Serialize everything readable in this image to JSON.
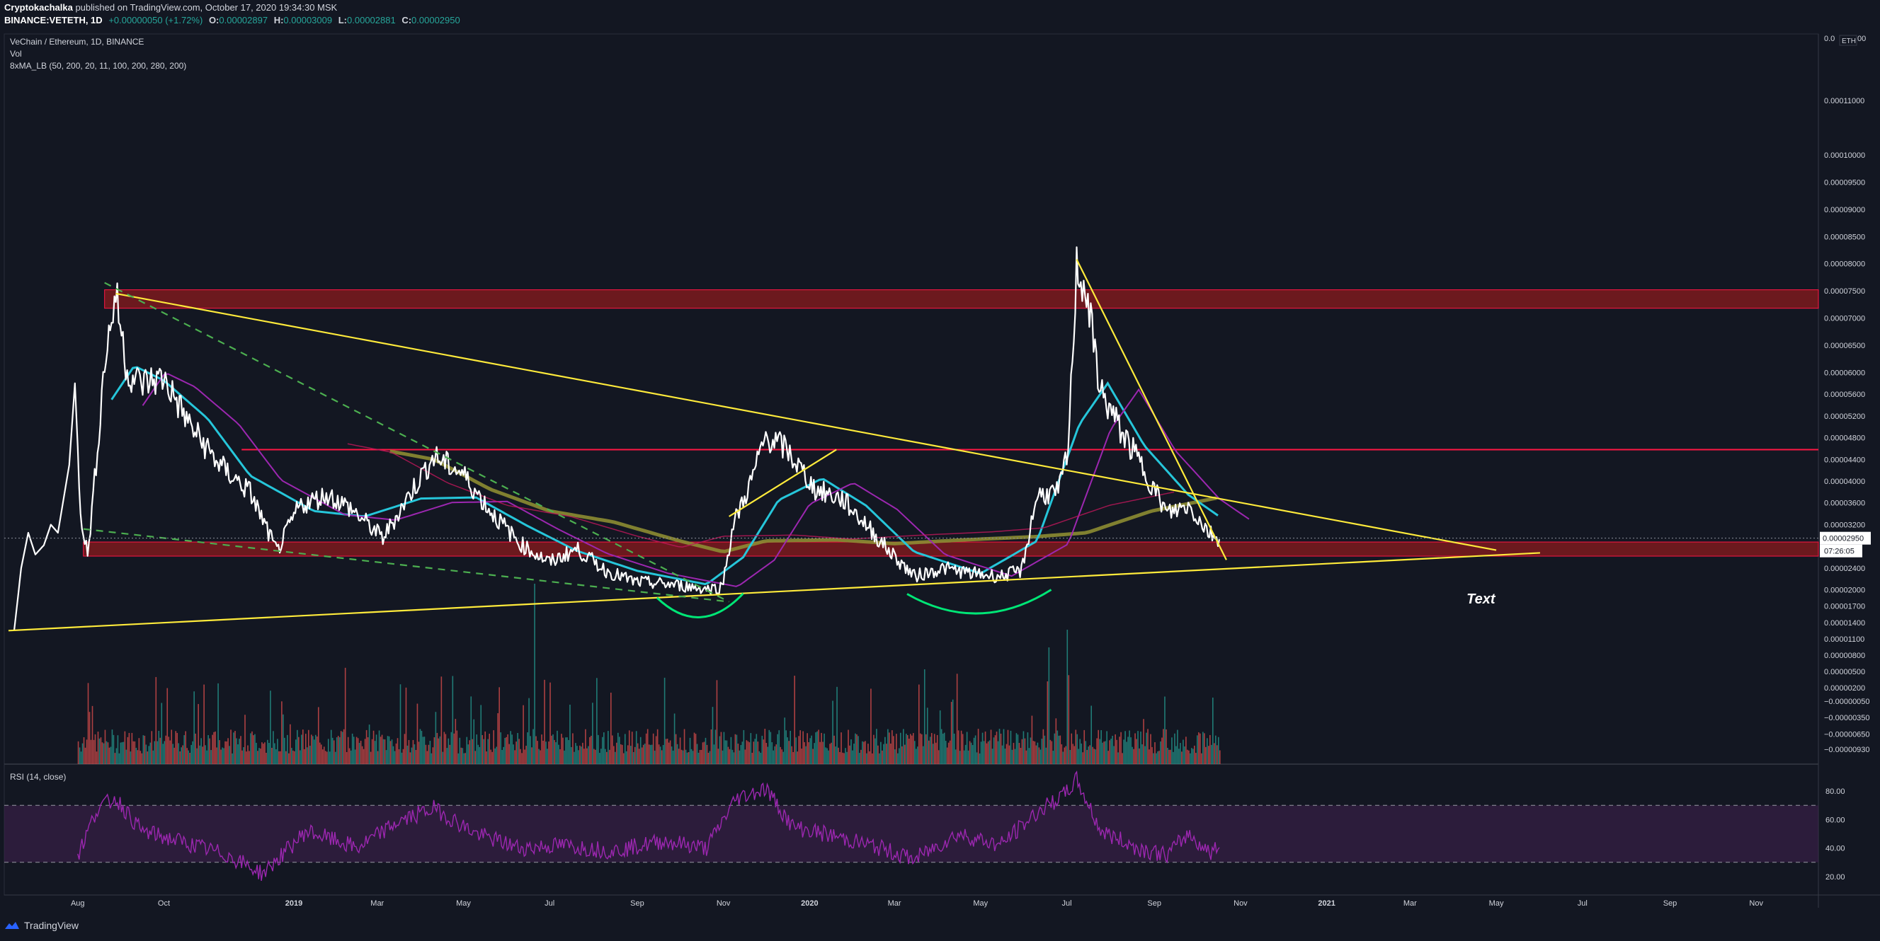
{
  "header": {
    "author": "Cryptokachalka",
    "published": "published on TradingView.com, October 17, 2020 19:34:30 MSK",
    "symbol_line": "BINANCE:VETETH, 1D",
    "change": "+0.00000050 (+1.72%)",
    "open_label": "O:",
    "open": "0.00002897",
    "high_label": "H:",
    "high": "0.00003009",
    "low_label": "L:",
    "low": "0.00002881",
    "close_label": "C:",
    "close": "0.00002950"
  },
  "legend": {
    "pair": "VeChain / Ethereum, 1D, BINANCE",
    "vol": "Vol",
    "ma": "8xMA_LB (50, 200, 20, 11, 100, 200, 280, 200)",
    "rsi": "RSI (14, close)"
  },
  "price_axis": {
    "currency": "ETH",
    "top_label": "0.0",
    "top_label_right": "00",
    "current_price": "0.00002950",
    "countdown": "07:26:05",
    "ticks": [
      {
        "label": "0.00011000",
        "v": 0.00011
      },
      {
        "label": "0.00010000",
        "v": 0.0001
      },
      {
        "label": "0.00009500",
        "v": 9.5e-05
      },
      {
        "label": "0.00009000",
        "v": 9e-05
      },
      {
        "label": "0.00008500",
        "v": 8.5e-05
      },
      {
        "label": "0.00008000",
        "v": 8e-05
      },
      {
        "label": "0.00007500",
        "v": 7.5e-05
      },
      {
        "label": "0.00007000",
        "v": 7e-05
      },
      {
        "label": "0.00006500",
        "v": 6.5e-05
      },
      {
        "label": "0.00006000",
        "v": 6e-05
      },
      {
        "label": "0.00005600",
        "v": 5.6e-05
      },
      {
        "label": "0.00005200",
        "v": 5.2e-05
      },
      {
        "label": "0.00004800",
        "v": 4.8e-05
      },
      {
        "label": "0.00004400",
        "v": 4.4e-05
      },
      {
        "label": "0.00004000",
        "v": 4e-05
      },
      {
        "label": "0.00003600",
        "v": 3.6e-05
      },
      {
        "label": "0.00003200",
        "v": 3.2e-05
      },
      {
        "label": "0.00002400",
        "v": 2.4e-05
      },
      {
        "label": "0.00002000",
        "v": 2e-05
      },
      {
        "label": "0.00001700",
        "v": 1.7e-05
      },
      {
        "label": "0.00001400",
        "v": 1.4e-05
      },
      {
        "label": "0.00001100",
        "v": 1.1e-05
      },
      {
        "label": "0.00000800",
        "v": 8e-06
      },
      {
        "label": "0.00000500",
        "v": 5e-06
      },
      {
        "label": "0.00000200",
        "v": 2e-06
      },
      {
        "label": "−0.00000050",
        "v": -5e-07
      },
      {
        "label": "−0.00000350",
        "v": -3.5e-06
      },
      {
        "label": "−0.00000650",
        "v": -6.5e-06
      },
      {
        "label": "−0.00000930",
        "v": -9.3e-06
      }
    ]
  },
  "rsi_axis": {
    "ticks": [
      "80.00",
      "60.00",
      "40.00",
      "20.00"
    ]
  },
  "time_axis": {
    "ticks": [
      {
        "label": "Aug",
        "d": "2018-08-01"
      },
      {
        "label": "Oct",
        "d": "2018-10-01"
      },
      {
        "label": "2019",
        "d": "2019-01-01"
      },
      {
        "label": "Mar",
        "d": "2019-03-01"
      },
      {
        "label": "May",
        "d": "2019-05-01"
      },
      {
        "label": "Jul",
        "d": "2019-07-01"
      },
      {
        "label": "Sep",
        "d": "2019-09-01"
      },
      {
        "label": "Nov",
        "d": "2019-11-01"
      },
      {
        "label": "2020",
        "d": "2020-01-01"
      },
      {
        "label": "Mar",
        "d": "2020-03-01"
      },
      {
        "label": "May",
        "d": "2020-05-01"
      },
      {
        "label": "Jul",
        "d": "2020-07-01"
      },
      {
        "label": "Sep",
        "d": "2020-09-01"
      },
      {
        "label": "Nov",
        "d": "2020-11-01"
      },
      {
        "label": "2021",
        "d": "2021-01-01"
      },
      {
        "label": "Mar",
        "d": "2021-03-01"
      },
      {
        "label": "May",
        "d": "2021-05-01"
      },
      {
        "label": "Jul",
        "d": "2021-07-01"
      },
      {
        "label": "Sep",
        "d": "2021-09-01"
      },
      {
        "label": "Nov",
        "d": "2021-11-01"
      }
    ]
  },
  "annotation_text": "Text",
  "footer": {
    "brand": "TradingView"
  },
  "colors": {
    "bg": "#131722",
    "price": "#ffffff",
    "trendline": "#ffeb3b",
    "support_zone": "#b71c1c",
    "dashed_green": "#4caf50",
    "arc_green": "#00e676",
    "ma_cyan": "#26c6da",
    "ma_purple": "#9c27b0",
    "ma_olive": "#8d8c32",
    "ma_crimson": "#c2185b",
    "rsi_line": "#9c27b0",
    "rsi_band": "#3b1f4a",
    "vol_up": "#26a69a",
    "vol_down": "#ef5350"
  },
  "chart_data": {
    "type": "line",
    "title": "VeChain / Ethereum, 1D, BINANCE",
    "price_scale": "linear",
    "y_range": [
      -1.05e-05,
      0.000122
    ],
    "x_range": [
      "2018-06-10",
      "2021-12-15"
    ],
    "price_series": {
      "name": "VETETH",
      "points": [
        [
          "2018-06-17",
          1.25e-05
        ],
        [
          "2018-06-22",
          2.4e-05
        ],
        [
          "2018-06-27",
          3.05e-05
        ],
        [
          "2018-07-02",
          2.65e-05
        ],
        [
          "2018-07-08",
          2.82e-05
        ],
        [
          "2018-07-13",
          3.2e-05
        ],
        [
          "2018-07-18",
          3.05e-05
        ],
        [
          "2018-07-26",
          4.3e-05
        ],
        [
          "2018-07-30",
          5.8e-05
        ],
        [
          "2018-08-03",
          3.45e-05
        ],
        [
          "2018-08-08",
          2.62e-05
        ],
        [
          "2018-08-14",
          4.3e-05
        ],
        [
          "2018-08-20",
          6.2e-05
        ],
        [
          "2018-08-28",
          7.45e-05
        ],
        [
          "2018-09-05",
          6e-05
        ],
        [
          "2018-09-15",
          5.8e-05
        ],
        [
          "2018-10-01",
          5.9e-05
        ],
        [
          "2018-10-20",
          5e-05
        ],
        [
          "2018-11-10",
          4.28e-05
        ],
        [
          "2018-12-01",
          3.8e-05
        ],
        [
          "2018-12-20",
          2.7e-05
        ],
        [
          "2019-01-05",
          3.55e-05
        ],
        [
          "2019-01-25",
          3.75e-05
        ],
        [
          "2019-02-10",
          3.5e-05
        ],
        [
          "2019-03-05",
          2.95e-05
        ],
        [
          "2019-03-25",
          3.8e-05
        ],
        [
          "2019-04-10",
          4.45e-05
        ],
        [
          "2019-04-30",
          4.15e-05
        ],
        [
          "2019-05-20",
          3.45e-05
        ],
        [
          "2019-06-10",
          2.85e-05
        ],
        [
          "2019-07-01",
          2.5e-05
        ],
        [
          "2019-07-20",
          2.75e-05
        ],
        [
          "2019-08-10",
          2.35e-05
        ],
        [
          "2019-08-30",
          2.15e-05
        ],
        [
          "2019-09-25",
          2.1e-05
        ],
        [
          "2019-10-20",
          2.02e-05
        ],
        [
          "2019-10-31",
          2.05e-05
        ],
        [
          "2019-11-08",
          3.2e-05
        ],
        [
          "2019-11-20",
          3.95e-05
        ],
        [
          "2019-12-01",
          4.82e-05
        ],
        [
          "2019-12-15",
          4.6e-05
        ],
        [
          "2020-01-05",
          3.85e-05
        ],
        [
          "2020-01-25",
          3.65e-05
        ],
        [
          "2020-02-10",
          3.2e-05
        ],
        [
          "2020-02-25",
          2.75e-05
        ],
        [
          "2020-03-15",
          2.25e-05
        ],
        [
          "2020-04-05",
          2.4e-05
        ],
        [
          "2020-04-25",
          2.3e-05
        ],
        [
          "2020-05-15",
          2.25e-05
        ],
        [
          "2020-05-30",
          2.35e-05
        ],
        [
          "2020-06-10",
          3.75e-05
        ],
        [
          "2020-06-25",
          3.78e-05
        ],
        [
          "2020-07-02",
          4.55e-05
        ],
        [
          "2020-07-08",
          7.95e-05
        ],
        [
          "2020-07-15",
          7.45e-05
        ],
        [
          "2020-07-25",
          5.65e-05
        ],
        [
          "2020-08-10",
          4.85e-05
        ],
        [
          "2020-08-25",
          4.2e-05
        ],
        [
          "2020-09-10",
          3.4e-05
        ],
        [
          "2020-09-25",
          3.55e-05
        ],
        [
          "2020-10-10",
          3.05e-05
        ],
        [
          "2020-10-17",
          2.95e-05
        ]
      ]
    },
    "ma_fast": {
      "name": "8xMA_LB",
      "points": [
        [
          "2018-08-25",
          5.5e-05
        ],
        [
          "2018-09-10",
          6.12e-05
        ],
        [
          "2018-10-01",
          5.85e-05
        ],
        [
          "2018-11-01",
          5.15e-05
        ],
        [
          "2018-12-01",
          4.1e-05
        ],
        [
          "2019-01-15",
          3.45e-05
        ],
        [
          "2019-02-20",
          3.35e-05
        ],
        [
          "2019-04-01",
          3.68e-05
        ],
        [
          "2019-05-10",
          3.7e-05
        ],
        [
          "2019-06-15",
          3.18e-05
        ],
        [
          "2019-07-20",
          2.72e-05
        ],
        [
          "2019-09-01",
          2.35e-05
        ],
        [
          "2019-10-20",
          2.1e-05
        ],
        [
          "2019-11-15",
          2.6e-05
        ],
        [
          "2019-12-10",
          3.65e-05
        ],
        [
          "2020-01-10",
          4.05e-05
        ],
        [
          "2020-02-10",
          3.55e-05
        ],
        [
          "2020-03-15",
          2.7e-05
        ],
        [
          "2020-05-01",
          2.3e-05
        ],
        [
          "2020-06-10",
          2.9e-05
        ],
        [
          "2020-07-10",
          5.05e-05
        ],
        [
          "2020-07-30",
          5.8e-05
        ],
        [
          "2020-08-25",
          4.65e-05
        ],
        [
          "2020-09-25",
          3.75e-05
        ],
        [
          "2020-10-17",
          3.35e-05
        ]
      ]
    },
    "ma_slow": {
      "name": "8xMA_LB",
      "points": [
        [
          "2019-03-10",
          4.55e-05
        ],
        [
          "2019-04-10",
          4.4e-05
        ],
        [
          "2019-05-20",
          3.85e-05
        ],
        [
          "2019-07-01",
          3.45e-05
        ],
        [
          "2019-08-15",
          3.25e-05
        ],
        [
          "2019-10-01",
          2.9e-05
        ],
        [
          "2019-11-01",
          2.7e-05
        ],
        [
          "2019-12-01",
          2.9e-05
        ],
        [
          "2020-01-20",
          2.92e-05
        ],
        [
          "2020-03-01",
          2.85e-05
        ],
        [
          "2020-04-20",
          2.92e-05
        ],
        [
          "2020-06-10",
          2.98e-05
        ],
        [
          "2020-07-15",
          3.05e-05
        ],
        [
          "2020-08-30",
          3.45e-05
        ],
        [
          "2020-10-17",
          3.7e-05
        ]
      ]
    },
    "support_zones": [
      {
        "from": 7.18e-05,
        "to": 7.52e-05
      },
      {
        "from": 2.62e-05,
        "to": 2.88e-05
      }
    ],
    "resistance_line": 4.58e-05,
    "trendlines": [
      {
        "style": "solid",
        "points": [
          [
            "2018-08-28",
            7.45e-05
          ],
          [
            "2021-05-01",
            2.73e-05
          ]
        ]
      },
      {
        "style": "solid",
        "points": [
          [
            "2018-06-13",
            1.25e-05
          ],
          [
            "2021-06-01",
            2.68e-05
          ]
        ]
      },
      {
        "style": "solid",
        "points": [
          [
            "2019-11-05",
            3.35e-05
          ],
          [
            "2020-01-20",
            4.58e-05
          ]
        ]
      },
      {
        "style": "solid",
        "points": [
          [
            "2020-07-08",
            8.08e-05
          ],
          [
            "2020-10-22",
            2.55e-05
          ]
        ]
      },
      {
        "style": "dashed",
        "points": [
          [
            "2018-08-20",
            7.65e-05
          ],
          [
            "2019-11-05",
            1.78e-05
          ]
        ]
      },
      {
        "style": "dashed",
        "points": [
          [
            "2018-08-05",
            3.12e-05
          ],
          [
            "2019-11-05",
            1.78e-05
          ]
        ]
      }
    ],
    "arcs": [
      {
        "from": "2019-09-15",
        "to": "2019-11-15",
        "center": 1.75e-05
      },
      {
        "from": "2020-03-10",
        "to": "2020-06-20",
        "center": 1.82e-05
      }
    ],
    "rsi": {
      "name": "RSI (14, close)",
      "levels": [
        70,
        30
      ],
      "ylim": [
        10,
        95
      ],
      "points": [
        [
          "2018-08-01",
          35
        ],
        [
          "2018-08-15",
          68
        ],
        [
          "2018-08-28",
          75
        ],
        [
          "2018-09-15",
          52
        ],
        [
          "2018-10-15",
          44
        ],
        [
          "2018-11-15",
          35
        ],
        [
          "2018-12-10",
          22
        ],
        [
          "2019-01-10",
          52
        ],
        [
          "2019-02-15",
          40
        ],
        [
          "2019-03-15",
          58
        ],
        [
          "2019-04-10",
          68
        ],
        [
          "2019-05-10",
          50
        ],
        [
          "2019-06-10",
          40
        ],
        [
          "2019-07-10",
          42
        ],
        [
          "2019-08-15",
          38
        ],
        [
          "2019-09-20",
          45
        ],
        [
          "2019-10-20",
          40
        ],
        [
          "2019-11-10",
          75
        ],
        [
          "2019-12-01",
          82
        ],
        [
          "2019-12-20",
          55
        ],
        [
          "2020-01-20",
          48
        ],
        [
          "2020-02-20",
          40
        ],
        [
          "2020-03-15",
          32
        ],
        [
          "2020-04-15",
          50
        ],
        [
          "2020-05-15",
          42
        ],
        [
          "2020-06-10",
          65
        ],
        [
          "2020-06-30",
          78
        ],
        [
          "2020-07-08",
          88
        ],
        [
          "2020-07-25",
          52
        ],
        [
          "2020-08-20",
          40
        ],
        [
          "2020-09-10",
          35
        ],
        [
          "2020-09-25",
          50
        ],
        [
          "2020-10-10",
          37
        ],
        [
          "2020-10-17",
          40
        ]
      ]
    }
  }
}
